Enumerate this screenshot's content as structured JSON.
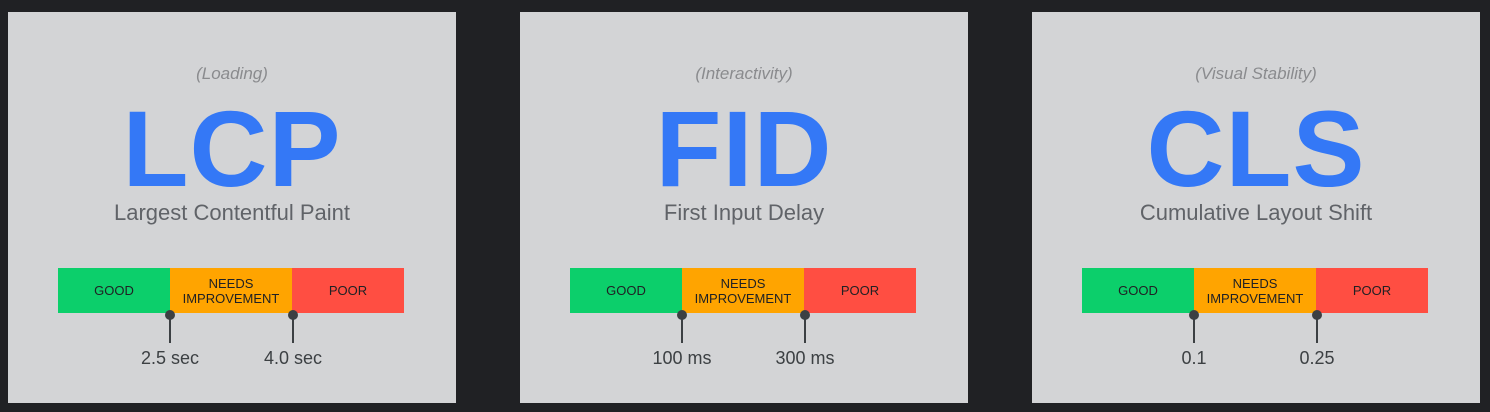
{
  "metrics": [
    {
      "category": "(Loading)",
      "acronym": "LCP",
      "name": "Largest Contentful Paint",
      "segments": {
        "good": "GOOD",
        "needs": "NEEDS IMPROVEMENT",
        "poor": "POOR"
      },
      "thresholds": [
        "2.5 sec",
        "4.0 sec"
      ]
    },
    {
      "category": "(Interactivity)",
      "acronym": "FID",
      "name": "First Input Delay",
      "segments": {
        "good": "GOOD",
        "needs": "NEEDS IMPROVEMENT",
        "poor": "POOR"
      },
      "thresholds": [
        "100 ms",
        "300 ms"
      ]
    },
    {
      "category": "(Visual Stability)",
      "acronym": "CLS",
      "name": "Cumulative Layout Shift",
      "segments": {
        "good": "GOOD",
        "needs": "NEEDS IMPROVEMENT",
        "poor": "POOR"
      },
      "thresholds": [
        "0.1",
        "0.25"
      ]
    }
  ],
  "colors": {
    "background": "#202124",
    "card": "#d3d4d6",
    "acronym": "#3478f6",
    "good": "#0ccf6b",
    "needs_improvement": "#ffa400",
    "poor": "#ff4e42"
  }
}
